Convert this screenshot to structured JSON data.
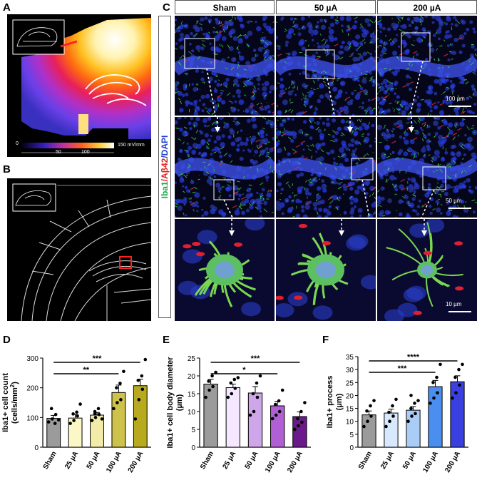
{
  "panels": {
    "A": {
      "label": "A",
      "colorbar_ticks": [
        "0",
        "50",
        "100"
      ],
      "colorbar_unit": "150 mV/mm"
    },
    "B": {
      "label": "B"
    },
    "C": {
      "label": "C",
      "columns": [
        "Sham",
        "50 µA",
        "200 µA"
      ],
      "side_label": {
        "part1": "Iba1",
        "part2": "/Aβ42",
        "part3": "/DAPI"
      },
      "scale_bars": [
        "100 µm",
        "50 µm",
        "10 µm"
      ]
    },
    "D": {
      "label": "D"
    },
    "E": {
      "label": "E"
    },
    "F": {
      "label": "F"
    }
  },
  "colors": {
    "sham": "#9b9b9b",
    "c25": "#f5e7ff",
    "c50": "#cfa6e9",
    "c100": "#b05fd4",
    "c200": "#6a1a8a",
    "d25": "#fbf7c6",
    "d50": "#f3eca8",
    "d100": "#cdc24c",
    "d200": "#b7aa1e",
    "f25": "#d7e9ff",
    "f50": "#a9cdf7",
    "f100": "#4a8ff0",
    "f200": "#3a3fe0",
    "red_outline": "#ff2020"
  },
  "chart_data": [
    {
      "type": "bar",
      "panel": "D",
      "categories": [
        "Sham",
        "25 µA",
        "50 µA",
        "100 µA",
        "200 µA"
      ],
      "values": [
        97,
        98,
        108,
        184,
        207
      ],
      "errors": [
        10,
        12,
        9,
        25,
        22
      ],
      "points": [
        [
          85,
          95,
          110,
          130,
          80,
          92
        ],
        [
          80,
          90,
          105,
          112,
          118,
          145
        ],
        [
          90,
          100,
          110,
          120,
          130,
          95,
          112
        ],
        [
          130,
          150,
          160,
          200,
          215,
          255
        ],
        [
          95,
          160,
          195,
          225,
          240,
          295
        ]
      ],
      "ylabel": "Iba1+ cell count (cells/mm²)",
      "ylabel_main": "Iba1+ cell count",
      "ylabel_unit": "(cells/mm",
      "ylabel_sup": "2",
      "ylabel_close": ")",
      "ylim": [
        0,
        300
      ],
      "yticks": [
        "0",
        "100",
        "200",
        "300"
      ],
      "significance": [
        {
          "from": 0,
          "to": 4,
          "text": "***"
        },
        {
          "from": 0,
          "to": 3,
          "text": "**"
        }
      ]
    },
    {
      "type": "bar",
      "panel": "E",
      "categories": [
        "Sham",
        "25 µA",
        "50 µA",
        "100 µA",
        "200 µA"
      ],
      "values": [
        17.7,
        16.7,
        15.2,
        11.6,
        8.6
      ],
      "errors": [
        1.3,
        1.0,
        1.8,
        1.3,
        1.3
      ],
      "points": [
        [
          14,
          16,
          17,
          18.5,
          20,
          21
        ],
        [
          14,
          15,
          16.5,
          18,
          19,
          19.5
        ],
        [
          9,
          10,
          14,
          15,
          18,
          20
        ],
        [
          8,
          9,
          10,
          12,
          13,
          16
        ],
        [
          5,
          6,
          7,
          8,
          10,
          12.5
        ]
      ],
      "ylabel": "Iba1+ cell body diameter (µm)",
      "ylabel_main": "Iba1+ cell body diameter",
      "ylabel_unit": "(µm)",
      "ylim": [
        0,
        25
      ],
      "yticks": [
        "0",
        "5",
        "10",
        "15",
        "20",
        "25"
      ],
      "significance": [
        {
          "from": 0,
          "to": 4,
          "text": "***"
        },
        {
          "from": 0,
          "to": 3,
          "text": "*"
        }
      ]
    },
    {
      "type": "bar",
      "panel": "F",
      "categories": [
        "Sham",
        "25 µA",
        "50 µA",
        "100 µA",
        "200 µA"
      ],
      "values": [
        12.5,
        13.2,
        14.3,
        23.4,
        25.3
      ],
      "errors": [
        1.5,
        1.5,
        1.4,
        2.4,
        2.3
      ],
      "points": [
        [
          8,
          10,
          12,
          14,
          16,
          18
        ],
        [
          8,
          10,
          12,
          13.5,
          16,
          18.5
        ],
        [
          10,
          12,
          13,
          15,
          17,
          18,
          20
        ],
        [
          17,
          19,
          21,
          25,
          27,
          32
        ],
        [
          19,
          21,
          24,
          27,
          30,
          32
        ]
      ],
      "ylabel": "Iba1+ process (µm)",
      "ylabel_main": "Iba1+ process",
      "ylabel_unit": "(µm)",
      "ylim": [
        0,
        35
      ],
      "yticks": [
        "0",
        "5",
        "10",
        "15",
        "20",
        "25",
        "30",
        "35"
      ],
      "significance": [
        {
          "from": 0,
          "to": 4,
          "text": "****"
        },
        {
          "from": 0,
          "to": 3,
          "text": "***"
        }
      ]
    }
  ]
}
